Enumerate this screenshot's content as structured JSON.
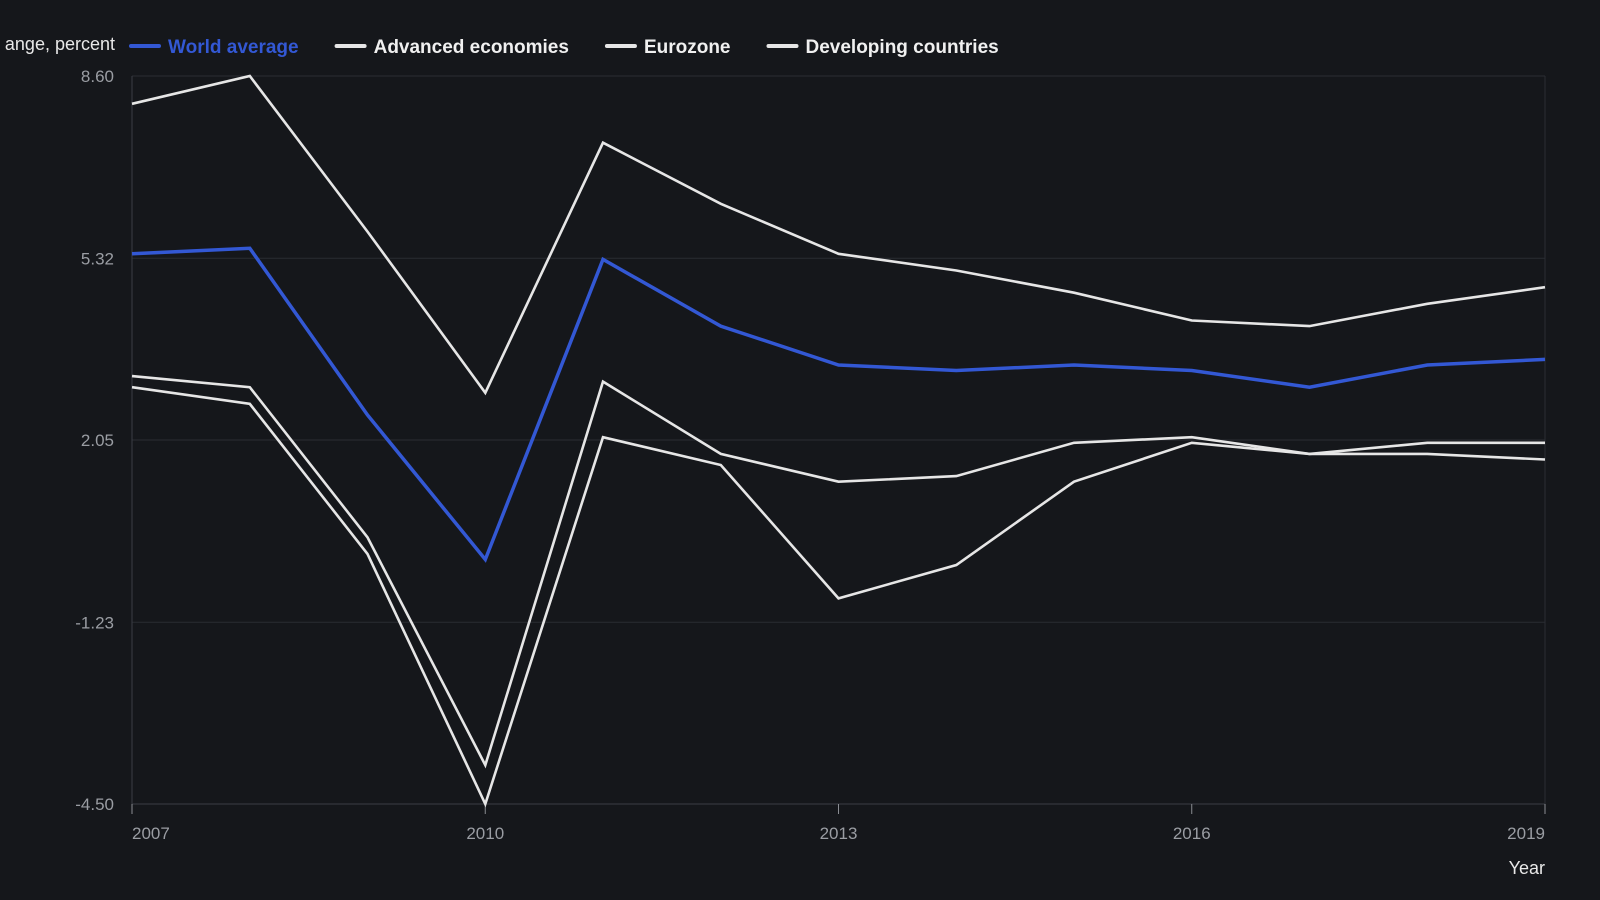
{
  "chart_data": {
    "type": "line",
    "title": "",
    "xlabel": "Year",
    "ylabel": "ange, percent",
    "x": [
      2007,
      2008,
      2009,
      2010,
      2011,
      2012,
      2013,
      2014,
      2015,
      2016,
      2017,
      2018,
      2019
    ],
    "x_ticks": [
      "2007",
      "2010",
      "2013",
      "2016",
      "2019"
    ],
    "y_ticks": [
      "8.60",
      "5.32",
      "2.05",
      "-1.23",
      "-4.50"
    ],
    "ylim": [
      -4.5,
      8.6
    ],
    "xlim": [
      2007,
      2019
    ],
    "grid": "horizontal",
    "legend_position": "top-left",
    "series": [
      {
        "name": "World average",
        "color": "#3358d4",
        "values": [
          5.4,
          5.5,
          2.5,
          -0.1,
          5.3,
          4.1,
          3.4,
          3.3,
          3.4,
          3.3,
          3.0,
          3.4,
          3.5
        ]
      },
      {
        "name": "Advanced economies",
        "color": "#e6e6e6",
        "values": [
          3.2,
          3.0,
          0.3,
          -3.8,
          3.1,
          1.8,
          1.3,
          1.4,
          2.0,
          2.1,
          1.8,
          2.0,
          2.0
        ]
      },
      {
        "name": "Eurozone",
        "color": "#e6e6e6",
        "values": [
          3.0,
          2.7,
          0.0,
          -4.5,
          2.1,
          1.6,
          -0.8,
          -0.2,
          1.3,
          2.0,
          1.8,
          1.8,
          1.7
        ]
      },
      {
        "name": "Developing countries",
        "color": "#e6e6e6",
        "values": [
          8.1,
          8.6,
          5.8,
          2.9,
          7.4,
          6.3,
          5.4,
          5.1,
          4.7,
          4.2,
          4.1,
          4.5,
          4.8
        ]
      }
    ]
  }
}
